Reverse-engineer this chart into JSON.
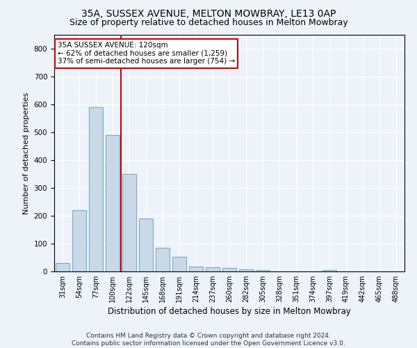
{
  "title1": "35A, SUSSEX AVENUE, MELTON MOWBRAY, LE13 0AP",
  "title2": "Size of property relative to detached houses in Melton Mowbray",
  "xlabel": "Distribution of detached houses by size in Melton Mowbray",
  "ylabel": "Number of detached properties",
  "categories": [
    "31sqm",
    "54sqm",
    "77sqm",
    "100sqm",
    "122sqm",
    "145sqm",
    "168sqm",
    "191sqm",
    "214sqm",
    "237sqm",
    "260sqm",
    "282sqm",
    "305sqm",
    "328sqm",
    "351sqm",
    "374sqm",
    "397sqm",
    "419sqm",
    "442sqm",
    "465sqm",
    "488sqm"
  ],
  "values": [
    30,
    220,
    590,
    490,
    350,
    190,
    85,
    52,
    17,
    15,
    13,
    8,
    5,
    0,
    0,
    0,
    5,
    0,
    0,
    0,
    0
  ],
  "bar_color": "#c9d9e8",
  "bar_edge_color": "#7aaac8",
  "vline_x": 3.5,
  "vline_color": "#cc0000",
  "annotation_text": "35A SUSSEX AVENUE: 120sqm\n← 62% of detached houses are smaller (1,259)\n37% of semi-detached houses are larger (754) →",
  "annotation_box_color": "white",
  "annotation_box_edge_color": "#cc0000",
  "ylim": [
    0,
    850
  ],
  "yticks": [
    0,
    100,
    200,
    300,
    400,
    500,
    600,
    700,
    800
  ],
  "background_color": "#eef2f9",
  "footer_text": "Contains HM Land Registry data © Crown copyright and database right 2024.\nContains public sector information licensed under the Open Government Licence v3.0.",
  "title1_fontsize": 10,
  "title2_fontsize": 9,
  "xlabel_fontsize": 8.5,
  "ylabel_fontsize": 8,
  "annotation_fontsize": 7.5,
  "footer_fontsize": 6.5
}
